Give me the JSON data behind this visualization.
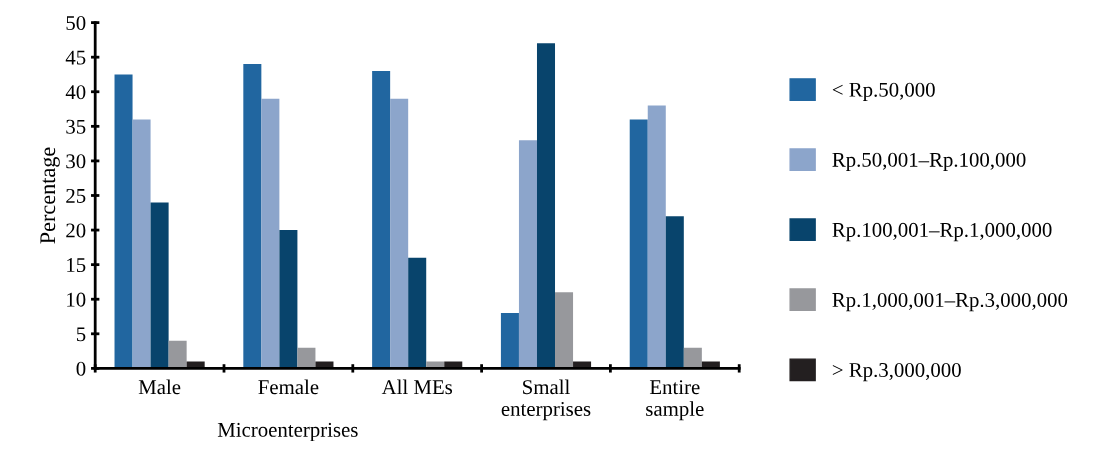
{
  "chart_data": {
    "type": "bar",
    "ylabel": "Percentage",
    "categories": [
      "Male",
      "Female",
      "All MEs",
      "Small\nenterprises",
      "Entire\nsample"
    ],
    "series": [
      {
        "name": "< Rp.50,000",
        "color": "#2166a0",
        "values": [
          42.5,
          44,
          43,
          8,
          36
        ]
      },
      {
        "name": "Rp.50,001–Rp.100,000",
        "color": "#8ca5cb",
        "values": [
          36,
          39,
          39,
          33,
          38
        ]
      },
      {
        "name": "Rp.100,001–Rp.1,000,000",
        "color": "#08446c",
        "values": [
          24,
          20,
          16,
          47,
          22
        ]
      },
      {
        "name": "Rp.1,000,001–Rp.3,000,000",
        "color": "#97989c",
        "values": [
          4,
          3,
          1,
          11,
          3
        ]
      },
      {
        "name": "> Rp.3,000,000",
        "color": "#231f20",
        "values": [
          1,
          1,
          1,
          1,
          1
        ]
      }
    ],
    "ylim": [
      0,
      50
    ],
    "yticks": [
      0,
      5,
      10,
      15,
      20,
      25,
      30,
      35,
      40,
      45,
      50
    ],
    "annotations": [
      "Microenterprises"
    ],
    "grid": false,
    "legend": "right"
  }
}
